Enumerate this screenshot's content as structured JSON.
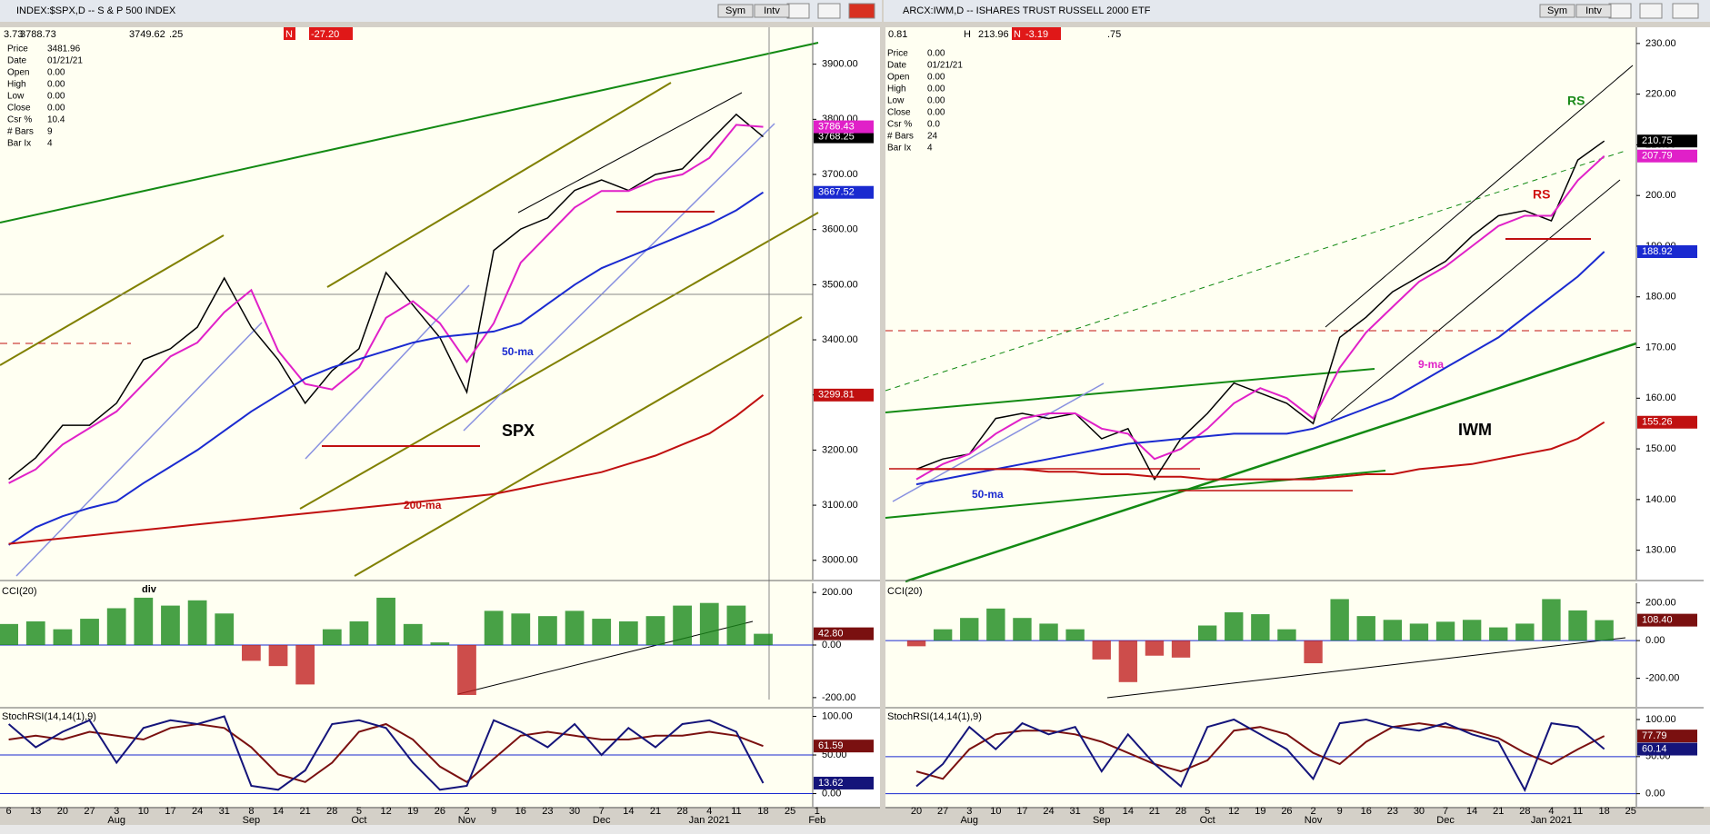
{
  "windows": [
    {
      "title": "INDEX:$SPX,D -- S & P 500 INDEX",
      "buttons": [
        "Sym",
        "Intv"
      ],
      "toolbar": [
        "3.73",
        "3788.73",
        "3749.62",
        ".25",
        "N",
        "-27.20"
      ],
      "info": [
        [
          "Price",
          "3481.96"
        ],
        [
          "Date",
          "01/21/21"
        ],
        [
          "Open",
          "0.00"
        ],
        [
          "High",
          "0.00"
        ],
        [
          "Low",
          "0.00"
        ],
        [
          "Close",
          "0.00"
        ],
        [
          "Csr %",
          "10.4"
        ],
        [
          "# Bars",
          "9"
        ],
        [
          "Bar Ix",
          "4"
        ]
      ]
    },
    {
      "title": "ARCX:IWM,D -- ISHARES TRUST RUSSELL 2000 ETF",
      "buttons": [
        "Sym",
        "Intv"
      ],
      "toolbar": [
        "0.81",
        "H",
        "213.96",
        "N",
        "-3.19",
        ".75"
      ],
      "info": [
        [
          "Price",
          "0.00"
        ],
        [
          "Date",
          "01/21/21"
        ],
        [
          "Open",
          "0.00"
        ],
        [
          "High",
          "0.00"
        ],
        [
          "Low",
          "0.00"
        ],
        [
          "Close",
          "0.00"
        ],
        [
          "Csr %",
          "0.0"
        ],
        [
          "# Bars",
          "24"
        ],
        [
          "Bar Ix",
          "4"
        ]
      ]
    }
  ],
  "chart_data": [
    {
      "type": "line",
      "categories": [
        "6",
        "13",
        "20",
        "27",
        "3",
        "10",
        "17",
        "24",
        "31",
        "8",
        "14",
        "21",
        "28",
        "5",
        "12",
        "19",
        "26",
        "2",
        "9",
        "16",
        "23",
        "30",
        "7",
        "14",
        "21",
        "28",
        "4",
        "11",
        "18",
        "25",
        "1"
      ],
      "months": [
        null,
        null,
        null,
        null,
        "Aug",
        null,
        null,
        null,
        null,
        "Sep",
        null,
        null,
        null,
        "Oct",
        null,
        null,
        null,
        "Nov",
        null,
        null,
        null,
        null,
        "Dec",
        null,
        null,
        null,
        "Jan 2021",
        null,
        null,
        null,
        "Feb"
      ],
      "series": [
        {
          "color": "#000000",
          "values": [
            3147,
            3186,
            3245,
            3245,
            3285,
            3364,
            3384,
            3423,
            3512,
            3423,
            3364,
            3285,
            3344,
            3384,
            3522,
            3463,
            3404,
            3305,
            3562,
            3601,
            3621,
            3671,
            3690,
            3671,
            3700,
            3710,
            3760,
            3809,
            3768.25,
            null,
            null
          ]
        },
        {
          "color": "#e020c8",
          "values": [
            3140,
            3165,
            3210,
            3240,
            3270,
            3320,
            3370,
            3395,
            3450,
            3490,
            3380,
            3320,
            3310,
            3350,
            3440,
            3470,
            3430,
            3360,
            3430,
            3540,
            3590,
            3640,
            3670,
            3670,
            3690,
            3700,
            3730,
            3790,
            3786.43,
            null,
            null
          ]
        },
        {
          "color": "#1a2ad0",
          "values": [
            3028,
            3060,
            3080,
            3095,
            3107,
            3140,
            3170,
            3200,
            3235,
            3270,
            3300,
            3330,
            3350,
            3365,
            3380,
            3395,
            3405,
            3410,
            3415,
            3430,
            3465,
            3500,
            3530,
            3550,
            3570,
            3590,
            3610,
            3635,
            3667.52,
            null,
            null
          ]
        },
        {
          "color": "#c01010",
          "values": [
            3030,
            3035,
            3040,
            3045,
            3050,
            3055,
            3060,
            3065,
            3070,
            3075,
            3080,
            3085,
            3090,
            3095,
            3100,
            3105,
            3110,
            3115,
            3120,
            3130,
            3140,
            3150,
            3160,
            3175,
            3190,
            3210,
            3230,
            3262,
            3299.81,
            null,
            null
          ]
        }
      ],
      "ylim": [
        2965,
        3967
      ],
      "yticks": [
        {
          "value": 3000,
          "label": "3000.00"
        },
        {
          "value": 3100,
          "label": "3100.00"
        },
        {
          "value": 3200,
          "label": "3200.00"
        },
        {
          "value": 3300,
          "label": "3300.00"
        },
        {
          "value": 3400,
          "label": "3400.00"
        },
        {
          "value": 3500,
          "label": "3500.00"
        },
        {
          "value": 3600,
          "label": "3600.00"
        },
        {
          "value": 3700,
          "label": "3700.00"
        },
        {
          "value": 3800,
          "label": "3800.00"
        },
        {
          "value": 3900,
          "label": "3900.00"
        }
      ],
      "annotations": [
        {
          "text": "SPX",
          "color": "#000000"
        },
        {
          "text": "50-ma",
          "color": "#1a2ad0"
        },
        {
          "text": "200-ma",
          "color": "#c01010"
        }
      ]
    },
    {
      "type": "bar",
      "title": "CCI(20)",
      "color": "#1a8a1a",
      "negative_color": "#c02020",
      "values": [
        80,
        90,
        60,
        100,
        140,
        180,
        150,
        170,
        120,
        -60,
        -80,
        -150,
        60,
        90,
        180,
        80,
        10,
        -190,
        130,
        120,
        110,
        130,
        100,
        90,
        110,
        150,
        160,
        150,
        42.8,
        null,
        null
      ],
      "value_labels": [
        null,
        null,
        null,
        null,
        null,
        null,
        null,
        null,
        null,
        null,
        null,
        null,
        null,
        null,
        null,
        null,
        null,
        null,
        null,
        null,
        null,
        null,
        null,
        null,
        null,
        null,
        null,
        null,
        "42.80",
        null,
        null
      ],
      "ylim": [
        -235,
        235
      ],
      "yticks": [
        {
          "value": 200,
          "label": "200.00"
        },
        {
          "value": 0,
          "label": "0.00"
        },
        {
          "value": -200,
          "label": "-200.00"
        }
      ],
      "annotations": [
        {
          "text": "div",
          "color": "#000000"
        }
      ]
    },
    {
      "type": "line",
      "title": "StochRSI(14,14(1),9)",
      "series": [
        {
          "color": "#7a1010",
          "values": [
            70,
            75,
            70,
            80,
            75,
            70,
            85,
            90,
            85,
            60,
            25,
            15,
            40,
            80,
            90,
            70,
            35,
            15,
            45,
            75,
            80,
            75,
            70,
            70,
            75,
            75,
            80,
            75,
            61.59,
            null,
            null
          ]
        },
        {
          "color": "#14147a",
          "values": [
            90,
            60,
            80,
            95,
            40,
            85,
            95,
            90,
            100,
            10,
            5,
            30,
            90,
            95,
            85,
            40,
            5,
            10,
            95,
            80,
            60,
            90,
            50,
            85,
            60,
            90,
            95,
            80,
            13.62,
            null,
            null
          ]
        }
      ],
      "ylim": [
        -17,
        110
      ],
      "yticks": [
        {
          "value": 100,
          "label": "100.00"
        },
        {
          "value": 50,
          "label": "50.00"
        },
        {
          "value": 0,
          "label": "0.00"
        }
      ]
    },
    {
      "type": "line",
      "categories": [
        "20",
        "27",
        "3",
        "10",
        "17",
        "24",
        "31",
        "8",
        "14",
        "21",
        "28",
        "5",
        "12",
        "19",
        "26",
        "2",
        "9",
        "16",
        "23",
        "30",
        "7",
        "14",
        "21",
        "28",
        "4",
        "11",
        "18",
        "25"
      ],
      "months": [
        null,
        null,
        "Aug",
        null,
        null,
        null,
        null,
        "Sep",
        null,
        null,
        null,
        "Oct",
        null,
        null,
        null,
        "Nov",
        null,
        null,
        null,
        null,
        "Dec",
        null,
        null,
        null,
        "Jan 2021",
        null,
        null,
        null
      ],
      "series": [
        {
          "color": "#000000",
          "values": [
            146,
            148,
            149,
            156,
            157,
            156,
            157,
            152,
            154,
            144,
            152,
            157,
            163,
            161,
            159,
            155,
            172,
            176,
            181,
            184,
            187,
            192,
            196,
            197,
            195,
            207,
            210.75,
            null
          ]
        },
        {
          "color": "#e020c8",
          "values": [
            144,
            147,
            149,
            153,
            156,
            157,
            157,
            154,
            153,
            148,
            150,
            154,
            159,
            162,
            160,
            156,
            166,
            173,
            178,
            183,
            186,
            190,
            194,
            196,
            196,
            203,
            207.79,
            null
          ]
        },
        {
          "color": "#1a2ad0",
          "values": [
            143,
            144,
            145,
            146,
            147,
            148,
            149,
            150,
            151,
            151.5,
            152,
            152.5,
            153,
            153,
            153,
            154,
            156,
            158,
            160,
            163,
            166,
            169,
            172,
            176,
            180,
            184,
            188.92,
            null
          ]
        },
        {
          "color": "#c01010",
          "values": [
            146,
            146,
            146,
            146,
            146,
            145.5,
            145.5,
            145,
            145,
            144.5,
            144.5,
            144,
            144,
            144,
            144,
            144,
            144.5,
            145,
            145,
            146,
            146.5,
            147,
            148,
            149,
            150,
            152,
            155.26,
            null
          ]
        }
      ],
      "ylim": [
        124.2,
        233.2
      ],
      "yticks": [
        {
          "value": 130,
          "label": "130.00"
        },
        {
          "value": 140,
          "label": "140.00"
        },
        {
          "value": 150,
          "label": "150.00"
        },
        {
          "value": 160,
          "label": "160.00"
        },
        {
          "value": 170,
          "label": "170.00"
        },
        {
          "value": 180,
          "label": "180.00"
        },
        {
          "value": 190,
          "label": "190.00"
        },
        {
          "value": 200,
          "label": "200.00"
        },
        {
          "value": 210,
          "label": "210.00"
        },
        {
          "value": 220,
          "label": "220.00"
        },
        {
          "value": 230,
          "label": "230.00"
        }
      ],
      "annotations": [
        {
          "text": "IWM",
          "color": "#000000"
        },
        {
          "text": "RS",
          "color": "#1a8a1a"
        },
        {
          "text": "RS",
          "color": "#d01010"
        },
        {
          "text": "9-ma",
          "color": "#e020c8"
        },
        {
          "text": "50-ma",
          "color": "#1a2ad0"
        }
      ]
    },
    {
      "type": "bar",
      "title": "CCI(20)",
      "color": "#1a8a1a",
      "negative_color": "#c02020",
      "values": [
        -30,
        60,
        120,
        170,
        120,
        90,
        60,
        -100,
        -220,
        -80,
        -90,
        80,
        150,
        140,
        60,
        -120,
        220,
        130,
        110,
        90,
        100,
        110,
        70,
        90,
        220,
        160,
        108.4,
        null
      ],
      "value_labels": [
        null,
        null,
        null,
        null,
        null,
        null,
        null,
        null,
        null,
        null,
        null,
        null,
        null,
        null,
        null,
        null,
        null,
        null,
        null,
        null,
        null,
        null,
        null,
        null,
        null,
        null,
        "108.40",
        null
      ],
      "ylim": [
        -351,
        304
      ],
      "yticks": [
        {
          "value": 200,
          "label": "200.00"
        },
        {
          "value": 0,
          "label": "0.00"
        },
        {
          "value": -200,
          "label": "-200.00"
        }
      ]
    },
    {
      "type": "line",
      "title": "StochRSI(14,14(1),9)",
      "series": [
        {
          "color": "#7a1010",
          "values": [
            30,
            20,
            60,
            80,
            85,
            85,
            80,
            70,
            55,
            40,
            30,
            45,
            85,
            90,
            80,
            55,
            40,
            70,
            90,
            95,
            90,
            85,
            75,
            55,
            40,
            60,
            77.79,
            null
          ]
        },
        {
          "color": "#14147a",
          "values": [
            10,
            40,
            90,
            60,
            95,
            80,
            90,
            30,
            80,
            40,
            10,
            90,
            100,
            80,
            60,
            20,
            95,
            100,
            90,
            85,
            95,
            80,
            70,
            5,
            95,
            90,
            60.14,
            null
          ]
        }
      ],
      "ylim": [
        -17.6,
        114.7
      ],
      "yticks": [
        {
          "value": 100,
          "label": "100.00"
        },
        {
          "value": 50,
          "label": "50.00"
        },
        {
          "value": 0,
          "label": "0.00"
        }
      ]
    }
  ]
}
